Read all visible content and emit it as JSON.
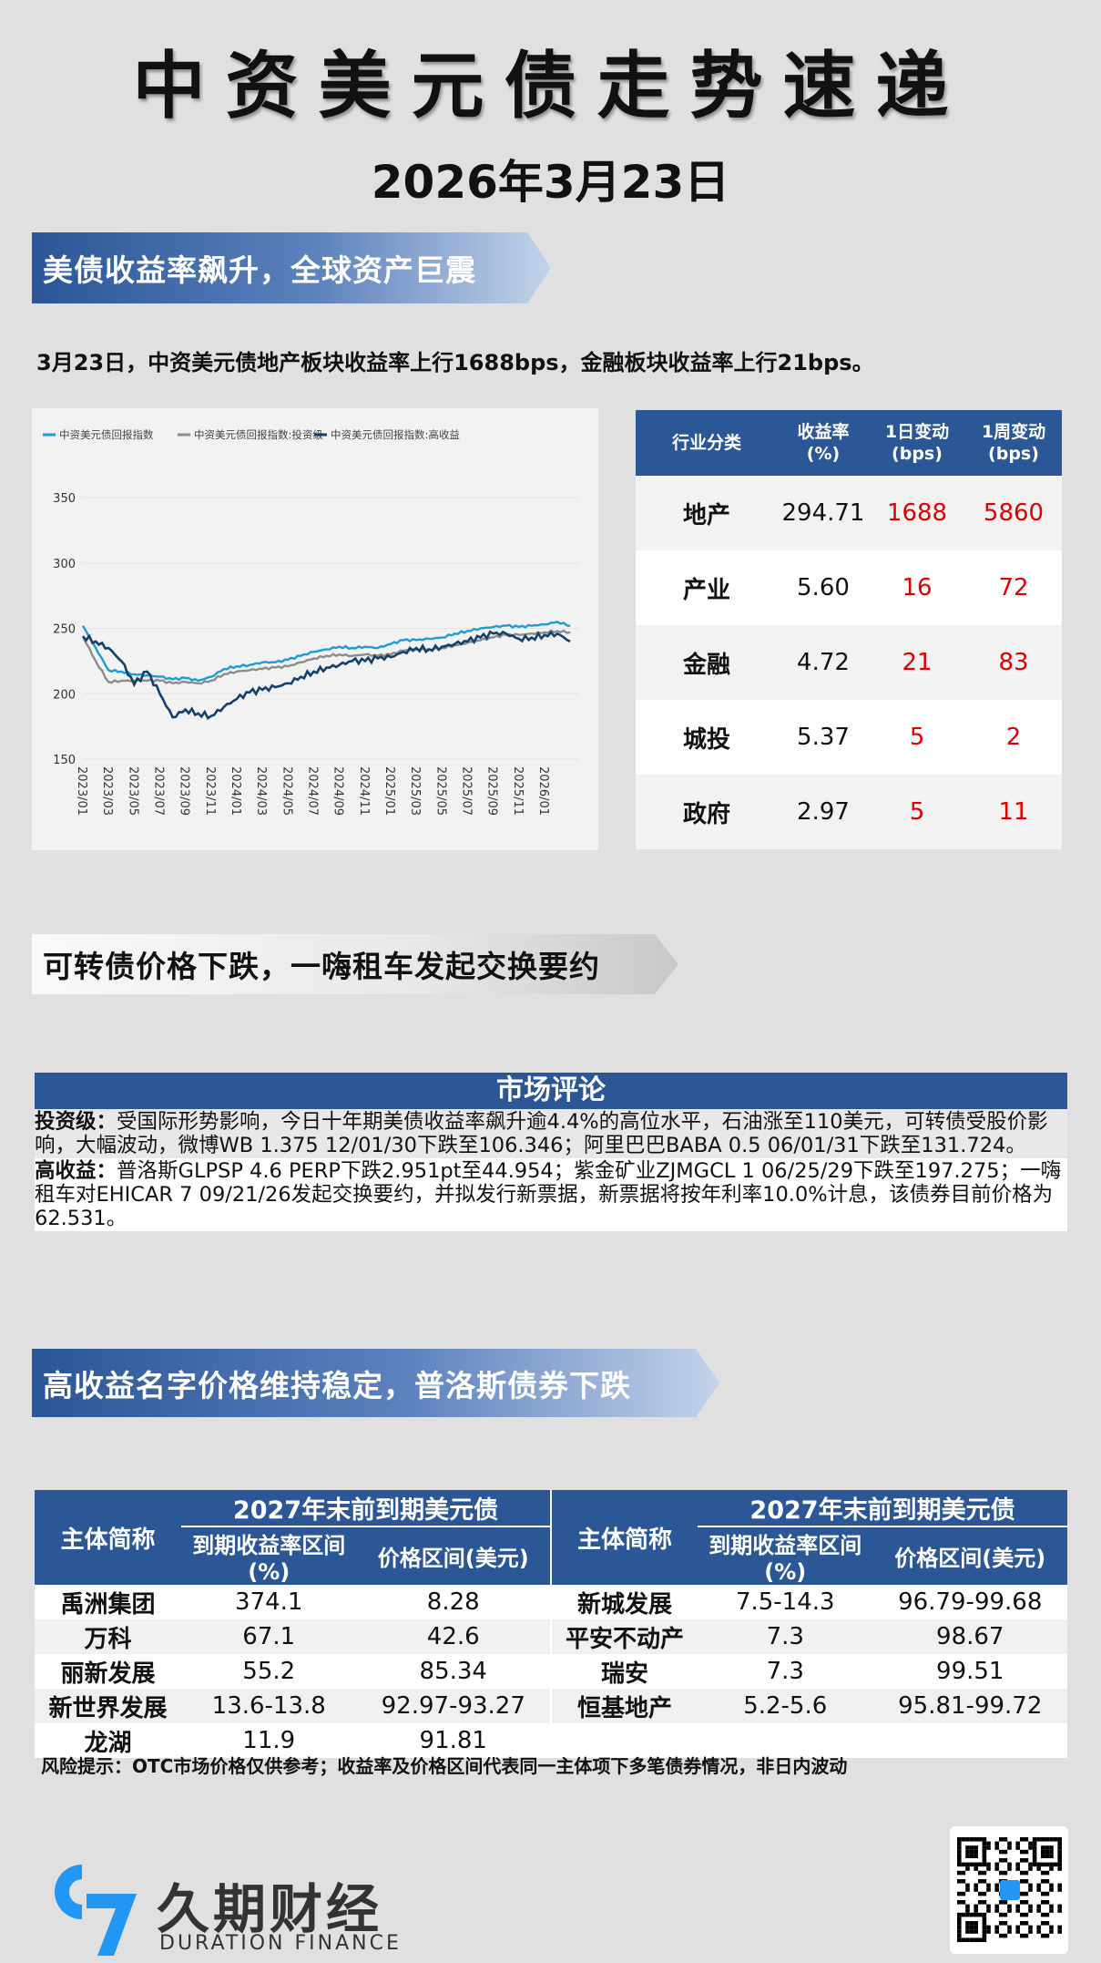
{
  "header": {
    "title": "中资美元债走势速递",
    "date": "2026年3月23日"
  },
  "section1": {
    "banner": "美债收益率飙升，全球资产巨震",
    "summary": "3月23日，中资美元债地产板块收益率上行1688bps，金融板块收益率上行21bps。"
  },
  "yield_table": {
    "headers": [
      "行业分类",
      "收益率(%)",
      "1日变动(bps)",
      "1周变动(bps)"
    ],
    "rows": [
      [
        "地产",
        "294.71",
        "1688",
        "5860"
      ],
      [
        "产业",
        "5.60",
        "16",
        "72"
      ],
      [
        "金融",
        "4.72",
        "21",
        "83"
      ],
      [
        "城投",
        "5.37",
        "5",
        "2"
      ],
      [
        "政府",
        "2.97",
        "5",
        "11"
      ]
    ]
  },
  "chart_data": {
    "type": "line",
    "title": "",
    "xlabel": "",
    "ylabel": "",
    "ylim": [
      150,
      350
    ],
    "yticks": [
      150,
      200,
      250,
      300,
      350
    ],
    "legend": "top-left",
    "grid": true,
    "xticks": [
      "2023/01",
      "2023/03",
      "2023/05",
      "2023/07",
      "2023/09",
      "2023/11",
      "2024/01",
      "2024/03",
      "2024/05",
      "2024/07",
      "2024/09",
      "2024/11",
      "2025/01",
      "2025/03",
      "2025/05",
      "2025/07",
      "2025/09",
      "2025/11",
      "2026/01"
    ],
    "x_range_months": [
      0,
      38.7
    ],
    "series": [
      {
        "name": "中资美元债回报指数",
        "color": "#1e9bd7",
        "values": [
          252,
          235,
          218,
          217,
          215,
          214,
          213,
          211,
          212,
          210,
          213,
          219,
          221,
          222,
          224,
          224,
          226,
          229,
          232,
          234,
          236,
          235,
          236,
          235,
          238,
          241,
          241,
          242,
          243,
          246,
          248,
          250,
          251,
          252,
          251,
          252,
          253,
          255,
          252
        ]
      },
      {
        "name": "中资美元债回报指数:投资级",
        "color": "#8c8c8c",
        "values": [
          244,
          225,
          209,
          210,
          210,
          210,
          210,
          208,
          209,
          208,
          210,
          215,
          217,
          218,
          219,
          220,
          221,
          224,
          227,
          229,
          230,
          229,
          230,
          229,
          230,
          233,
          234,
          234,
          235,
          237,
          239,
          241,
          243,
          245,
          245,
          246,
          247,
          248,
          247
        ]
      },
      {
        "name": "中资美元债回报指数:高收益",
        "color": "#14406e",
        "values": [
          244,
          240,
          235,
          225,
          207,
          217,
          200,
          182,
          188,
          185,
          183,
          190,
          196,
          201,
          203,
          205,
          208,
          213,
          217,
          220,
          222,
          225,
          225,
          227,
          228,
          232,
          235,
          234,
          236,
          238,
          240,
          243,
          246,
          246,
          242,
          243,
          245,
          246,
          240
        ]
      }
    ]
  },
  "section2": {
    "banner": "可转债价格下跌，一嗨租车发起交换要约"
  },
  "comment": {
    "title": "市场评论",
    "ig_label": "投资级：",
    "ig_text": "受国际形势影响，今日十年期美债收益率飙升逾4.4%的高位水平，石油涨至110美元，可转债受股价影响，大幅波动，微博WB 1.375 12/01/30下跌至106.346；阿里巴巴BABA 0.5 06/01/31下跌至131.724。",
    "hy_label": "高收益：",
    "hy_text": "普洛斯GLPSP 4.6 PERP下跌2.951pt至44.954；紫金矿业ZJMGCL 1 06/25/29下跌至197.275；一嗨租车对EHICAR 7 09/21/26发起交换要约，并拟发行新票据，新票据将按年利率10.0%计息，该债券目前价格为62.531。"
  },
  "section3": {
    "banner": "高收益名字价格维持稳定，普洛斯债券下跌"
  },
  "bond_table": {
    "name_header": "主体简称",
    "group_header": "2027年末前到期美元债",
    "yield_header": "到期收益率区间(%)",
    "price_header": "价格区间(美元)",
    "left": [
      [
        "禹洲集团",
        "374.1",
        "8.28"
      ],
      [
        "万科",
        "67.1",
        "42.6"
      ],
      [
        "丽新发展",
        "55.2",
        "85.34"
      ],
      [
        "新世界发展",
        "13.6-13.8",
        "92.97-93.27"
      ],
      [
        "龙湖",
        "11.9",
        "91.81"
      ]
    ],
    "right": [
      [
        "新城发展",
        "7.5-14.3",
        "96.79-99.68"
      ],
      [
        "平安不动产",
        "7.3",
        "98.67"
      ],
      [
        "瑞安",
        "7.3",
        "99.51"
      ],
      [
        "恒基地产",
        "5.2-5.6",
        "95.81-99.72"
      ],
      [
        "",
        "",
        ""
      ]
    ]
  },
  "note": "风险提示：OTC市场价格仅供参考；收益率及价格区间代表同一主体项下多笔债券情况，非日内波动",
  "footer": {
    "brand": "久期财经",
    "brand_en": "DURATION FINANCE",
    "logo_text": "97"
  }
}
